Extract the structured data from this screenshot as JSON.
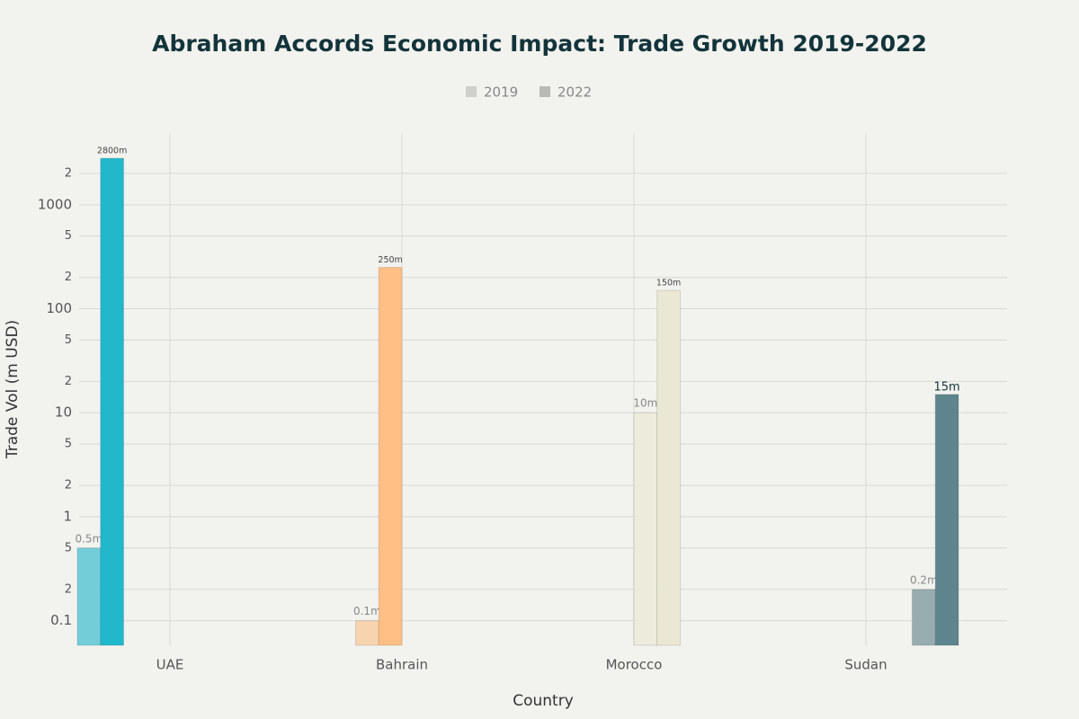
{
  "chart_data": {
    "type": "bar",
    "title": "Abraham Accords Economic Impact: Trade Growth 2019-2022",
    "x_label": "Country",
    "y_label": "Trade Vol (m USD)",
    "categories": [
      "UAE",
      "Bahrain",
      "Morocco",
      "Sudan"
    ],
    "series": [
      {
        "name": "2019",
        "color": "#cfcfcb",
        "values": [
          0.5,
          0.1,
          10,
          0.2
        ],
        "value_labels": [
          "0.5m",
          "0.1m",
          "10m",
          "0.2m"
        ],
        "colors": [
          "#72cdd9",
          "#f8d3b0",
          "#ecebdc",
          "#98adb0"
        ]
      },
      {
        "name": "2022",
        "color": "#b9b9b5",
        "values": [
          2800,
          250,
          150,
          15
        ],
        "value_labels": [
          "2800m",
          "250m",
          "150m",
          "15m"
        ],
        "colors": [
          "#22b8cc",
          "#ffbf85",
          "#eae8d4",
          "#5e858d"
        ]
      }
    ],
    "log_scale": true,
    "ylim": [
      0.058,
      4900
    ],
    "yticks": [
      0.1,
      {
        "value": 0.2,
        "label": "2"
      },
      {
        "value": 0.5,
        "label": "5"
      },
      1,
      {
        "value": 2,
        "label": "2"
      },
      {
        "value": 5,
        "label": "5"
      },
      10,
      {
        "value": 20,
        "label": "2"
      },
      {
        "value": 50,
        "label": "5"
      },
      100,
      {
        "value": 200,
        "label": "2"
      },
      {
        "value": 500,
        "label": "5"
      },
      1000,
      {
        "value": 2000,
        "label": "2"
      }
    ],
    "grid": true,
    "legend_position": "top"
  }
}
